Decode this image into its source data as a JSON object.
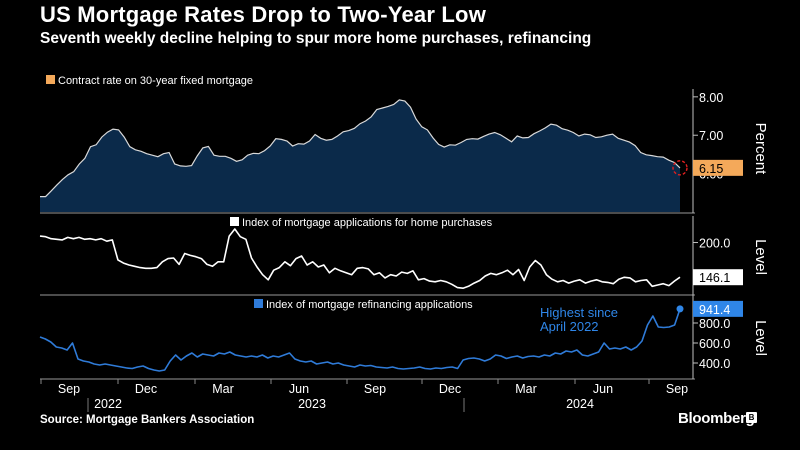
{
  "title": "US Mortgage Rates Drop to Two-Year Low",
  "subtitle": "Seventh weekly decline helping to spur more home purchases, refinancing",
  "source": "Source: Mortgage Bankers Association",
  "brand": "Bloomberg",
  "brand_icon_glyph": "B",
  "colors": {
    "background": "#000000",
    "rate_line": "#d9d9d9",
    "rate_fill": "#0b2a4a",
    "rate_label": "#f4a95a",
    "purchase_line": "#ffffff",
    "refi_line": "#2f7bd8",
    "refi_label": "#2f86e8",
    "callout_circle": "#e02020",
    "axis": "#bfbfbf"
  },
  "chart_data": [
    {
      "type": "area",
      "legend": "Contract rate on 30-year fixed mortgage",
      "ylabel": "Percent",
      "ylim": [
        5.0,
        8.1
      ],
      "ytick_labels": [
        "6.00",
        "7.00",
        "8.00"
      ],
      "ytick_values": [
        6.0,
        7.0,
        8.0
      ],
      "last_value_label": "6.15",
      "callout_circle": true,
      "x_start": 2022.67,
      "x_step_weeks": 1,
      "values": [
        5.4,
        5.4,
        5.55,
        5.7,
        5.85,
        5.97,
        6.05,
        6.25,
        6.4,
        6.7,
        6.75,
        6.95,
        7.08,
        7.16,
        7.14,
        6.95,
        6.7,
        6.62,
        6.58,
        6.52,
        6.48,
        6.44,
        6.52,
        6.55,
        6.25,
        6.2,
        6.19,
        6.21,
        6.46,
        6.67,
        6.71,
        6.48,
        6.45,
        6.45,
        6.4,
        6.32,
        6.36,
        6.48,
        6.53,
        6.52,
        6.6,
        6.72,
        6.91,
        6.89,
        6.85,
        6.72,
        6.78,
        6.77,
        6.85,
        7.02,
        6.92,
        6.87,
        6.89,
        6.98,
        7.09,
        7.12,
        7.18,
        7.3,
        7.37,
        7.48,
        7.67,
        7.71,
        7.75,
        7.8,
        7.92,
        7.89,
        7.73,
        7.42,
        7.22,
        7.14,
        6.93,
        6.76,
        6.69,
        6.75,
        6.74,
        6.81,
        6.89,
        6.91,
        6.9,
        6.97,
        7.03,
        7.07,
        7.01,
        6.92,
        6.83,
        6.98,
        6.93,
        6.94,
        7.04,
        7.11,
        7.19,
        7.29,
        7.26,
        7.17,
        7.13,
        7.07,
        6.98,
        7.03,
        7.01,
        6.94,
        6.96,
        7.0,
        7.03,
        6.92,
        6.87,
        6.82,
        6.73,
        6.55,
        6.49,
        6.47,
        6.44,
        6.43,
        6.35,
        6.29,
        6.15
      ]
    },
    {
      "type": "line",
      "legend": "Index of mortgage applications for home purchases",
      "ylabel": "Level",
      "ylim": [
        120,
        235
      ],
      "ytick_labels": [
        "200.0"
      ],
      "ytick_values": [
        200
      ],
      "last_value_label": "146.1",
      "x_start": 2022.67,
      "x_step_weeks": 1,
      "values": [
        210,
        209,
        206,
        205,
        204,
        208,
        206,
        208,
        205,
        206,
        204,
        206,
        202,
        204,
        173,
        168,
        165,
        163,
        161,
        160,
        160,
        161,
        170,
        175,
        176,
        166,
        183,
        180,
        178,
        175,
        166,
        163,
        170,
        170,
        210,
        221,
        209,
        205,
        176,
        162,
        150,
        142,
        157,
        161,
        170,
        164,
        175,
        179,
        165,
        170,
        162,
        165,
        153,
        160,
        156,
        153,
        150,
        160,
        161,
        159,
        150,
        153,
        145,
        150,
        148,
        154,
        152,
        156,
        142,
        144,
        140,
        139,
        141,
        139,
        135,
        130,
        129,
        132,
        137,
        141,
        148,
        152,
        150,
        153,
        157,
        150,
        158,
        141,
        162,
        172,
        165,
        150,
        143,
        139,
        141,
        137,
        140,
        142,
        137,
        140,
        142,
        139,
        138,
        136,
        143,
        146,
        145,
        139,
        141,
        142,
        132,
        134,
        136,
        133,
        140,
        146.1
      ]
    },
    {
      "type": "line",
      "legend": "Index of mortgage refinancing applications",
      "ylabel": "Level",
      "ylim": [
        250,
        1050
      ],
      "ytick_labels": [
        "400.0",
        "600.0",
        "800.0"
      ],
      "ytick_values": [
        400,
        600,
        800
      ],
      "last_value_label": "941.4",
      "annotation": "Highest since April 2022",
      "annotation_lines": [
        "Highest since",
        "April 2022"
      ],
      "x_start": 2022.67,
      "x_step_weeks": 1,
      "values": [
        660,
        640,
        610,
        560,
        550,
        530,
        600,
        440,
        420,
        410,
        390,
        380,
        390,
        380,
        370,
        360,
        350,
        345,
        360,
        370,
        345,
        330,
        320,
        330,
        420,
        480,
        430,
        470,
        500,
        460,
        490,
        480,
        470,
        500,
        490,
        510,
        480,
        470,
        460,
        470,
        460,
        480,
        450,
        470,
        460,
        480,
        500,
        440,
        420,
        410,
        420,
        390,
        400,
        410,
        390,
        400,
        380,
        370,
        360,
        380,
        370,
        375,
        360,
        355,
        350,
        360,
        345,
        340,
        345,
        350,
        360,
        345,
        340,
        350,
        345,
        355,
        360,
        345,
        430,
        445,
        450,
        440,
        420,
        440,
        480,
        470,
        445,
        460,
        470,
        450,
        465,
        470,
        460,
        480,
        470,
        500,
        490,
        520,
        510,
        530,
        480,
        470,
        490,
        510,
        600,
        540,
        550,
        540,
        560,
        530,
        560,
        620,
        780,
        870,
        760,
        755,
        760,
        780,
        941.4
      ]
    }
  ],
  "x_axis": {
    "months": [
      "Sep",
      "Dec",
      "Mar",
      "Jun",
      "Sep",
      "Dec",
      "Mar",
      "Jun",
      "Sep"
    ],
    "years": [
      "2022",
      "2023",
      "2024"
    ]
  }
}
